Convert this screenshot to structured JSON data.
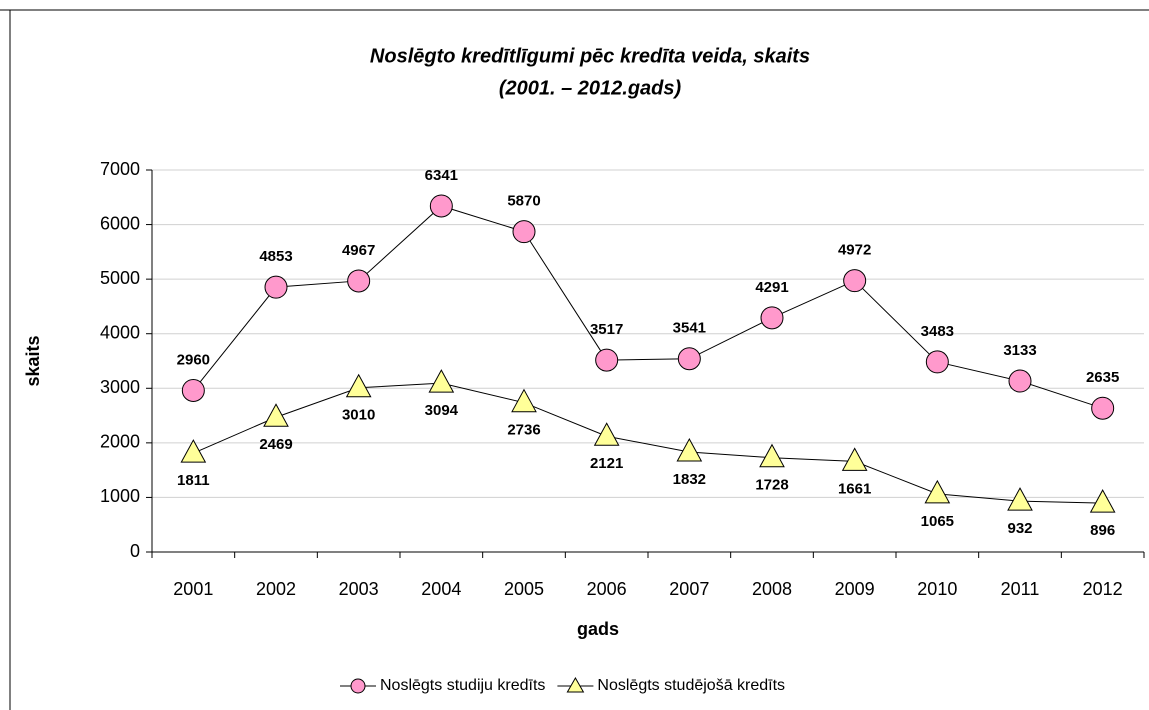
{
  "chart_data": {
    "type": "line",
    "title": "Noslēgto kredītlīgumi pēc kredīta veida, skaits",
    "subtitle": "(2001. – 2012.gads)",
    "x_label": "gads",
    "y_label": "skaits",
    "categories": [
      "2001",
      "2002",
      "2003",
      "2004",
      "2005",
      "2006",
      "2007",
      "2008",
      "2009",
      "2010",
      "2011",
      "2012"
    ],
    "series": [
      {
        "name": "Noslēgts studiju kredīts",
        "color": "#ff99cc",
        "marker": "circle",
        "values": [
          2960,
          4853,
          4967,
          6341,
          5870,
          3517,
          3541,
          4291,
          4972,
          3483,
          3133,
          2635
        ]
      },
      {
        "name": "Noslēgts studējošā kredīts",
        "color": "#ffff99",
        "marker": "triangle",
        "values": [
          1811,
          2469,
          3010,
          3094,
          2736,
          2121,
          1832,
          1728,
          1661,
          1065,
          932,
          896
        ]
      }
    ],
    "ylim": [
      0,
      7000
    ],
    "yticks": [
      0,
      1000,
      2000,
      3000,
      4000,
      5000,
      6000,
      7000
    ],
    "grid": true,
    "legend": "bottom"
  }
}
